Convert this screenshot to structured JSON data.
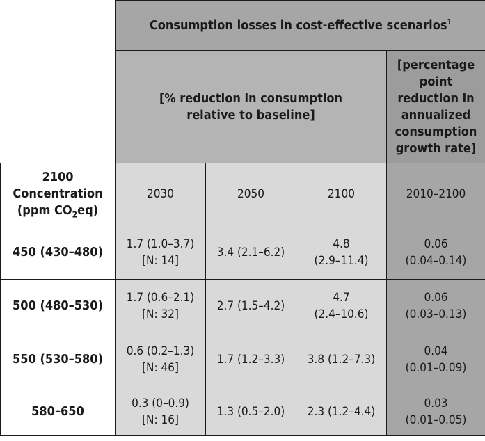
{
  "table": {
    "header_main": "Consumption losses in cost-effective scenarios",
    "header_main_footnote": "1",
    "header_sub_left_line1": "[% reduction in consumption",
    "header_sub_left_line2": "relative to baseline]",
    "header_sub_right_lines": [
      "[percentage",
      "point",
      "reduction in",
      "annualized",
      "consumption",
      "growth rate]"
    ],
    "concentration_header": {
      "line1": "2100",
      "line2": "Concentration",
      "line3_pre": "(ppm CO",
      "line3_sub": "2",
      "line3_post": "eq)"
    },
    "years": [
      "2030",
      "2050",
      "2100",
      "2010–2100"
    ],
    "rows": [
      {
        "label": "450 (430–480)",
        "c2030": [
          "1.7 (1.0–3.7)",
          "[N: 14]"
        ],
        "c2050": [
          "3.4 (2.1–6.2)"
        ],
        "c2100": [
          "4.8",
          "(2.9–11.4)"
        ],
        "crate": [
          "0.06",
          "(0.04–0.14)"
        ]
      },
      {
        "label": "500 (480–530)",
        "c2030": [
          "1.7 (0.6–2.1)",
          "[N: 32]"
        ],
        "c2050": [
          "2.7 (1.5–4.2)"
        ],
        "c2100": [
          "4.7",
          "(2.4–10.6)"
        ],
        "crate": [
          "0.06",
          "(0.03–0.13)"
        ]
      },
      {
        "label": "550 (530–580)",
        "c2030": [
          "0.6 (0.2–1.3)",
          "[N: 46]"
        ],
        "c2050": [
          "1.7 (1.2–3.3)"
        ],
        "c2100": [
          "3.8 (1.2–7.3)"
        ],
        "crate": [
          "0.04",
          "(0.01–0.09)"
        ]
      },
      {
        "label": "580–650",
        "c2030": [
          "0.3 (0–0.9)",
          "[N: 16]"
        ],
        "c2050": [
          "1.3 (0.5–2.0)"
        ],
        "c2100": [
          "2.3 (1.2–4.4)"
        ],
        "crate": [
          "0.03",
          "(0.01–0.05)"
        ]
      }
    ]
  }
}
